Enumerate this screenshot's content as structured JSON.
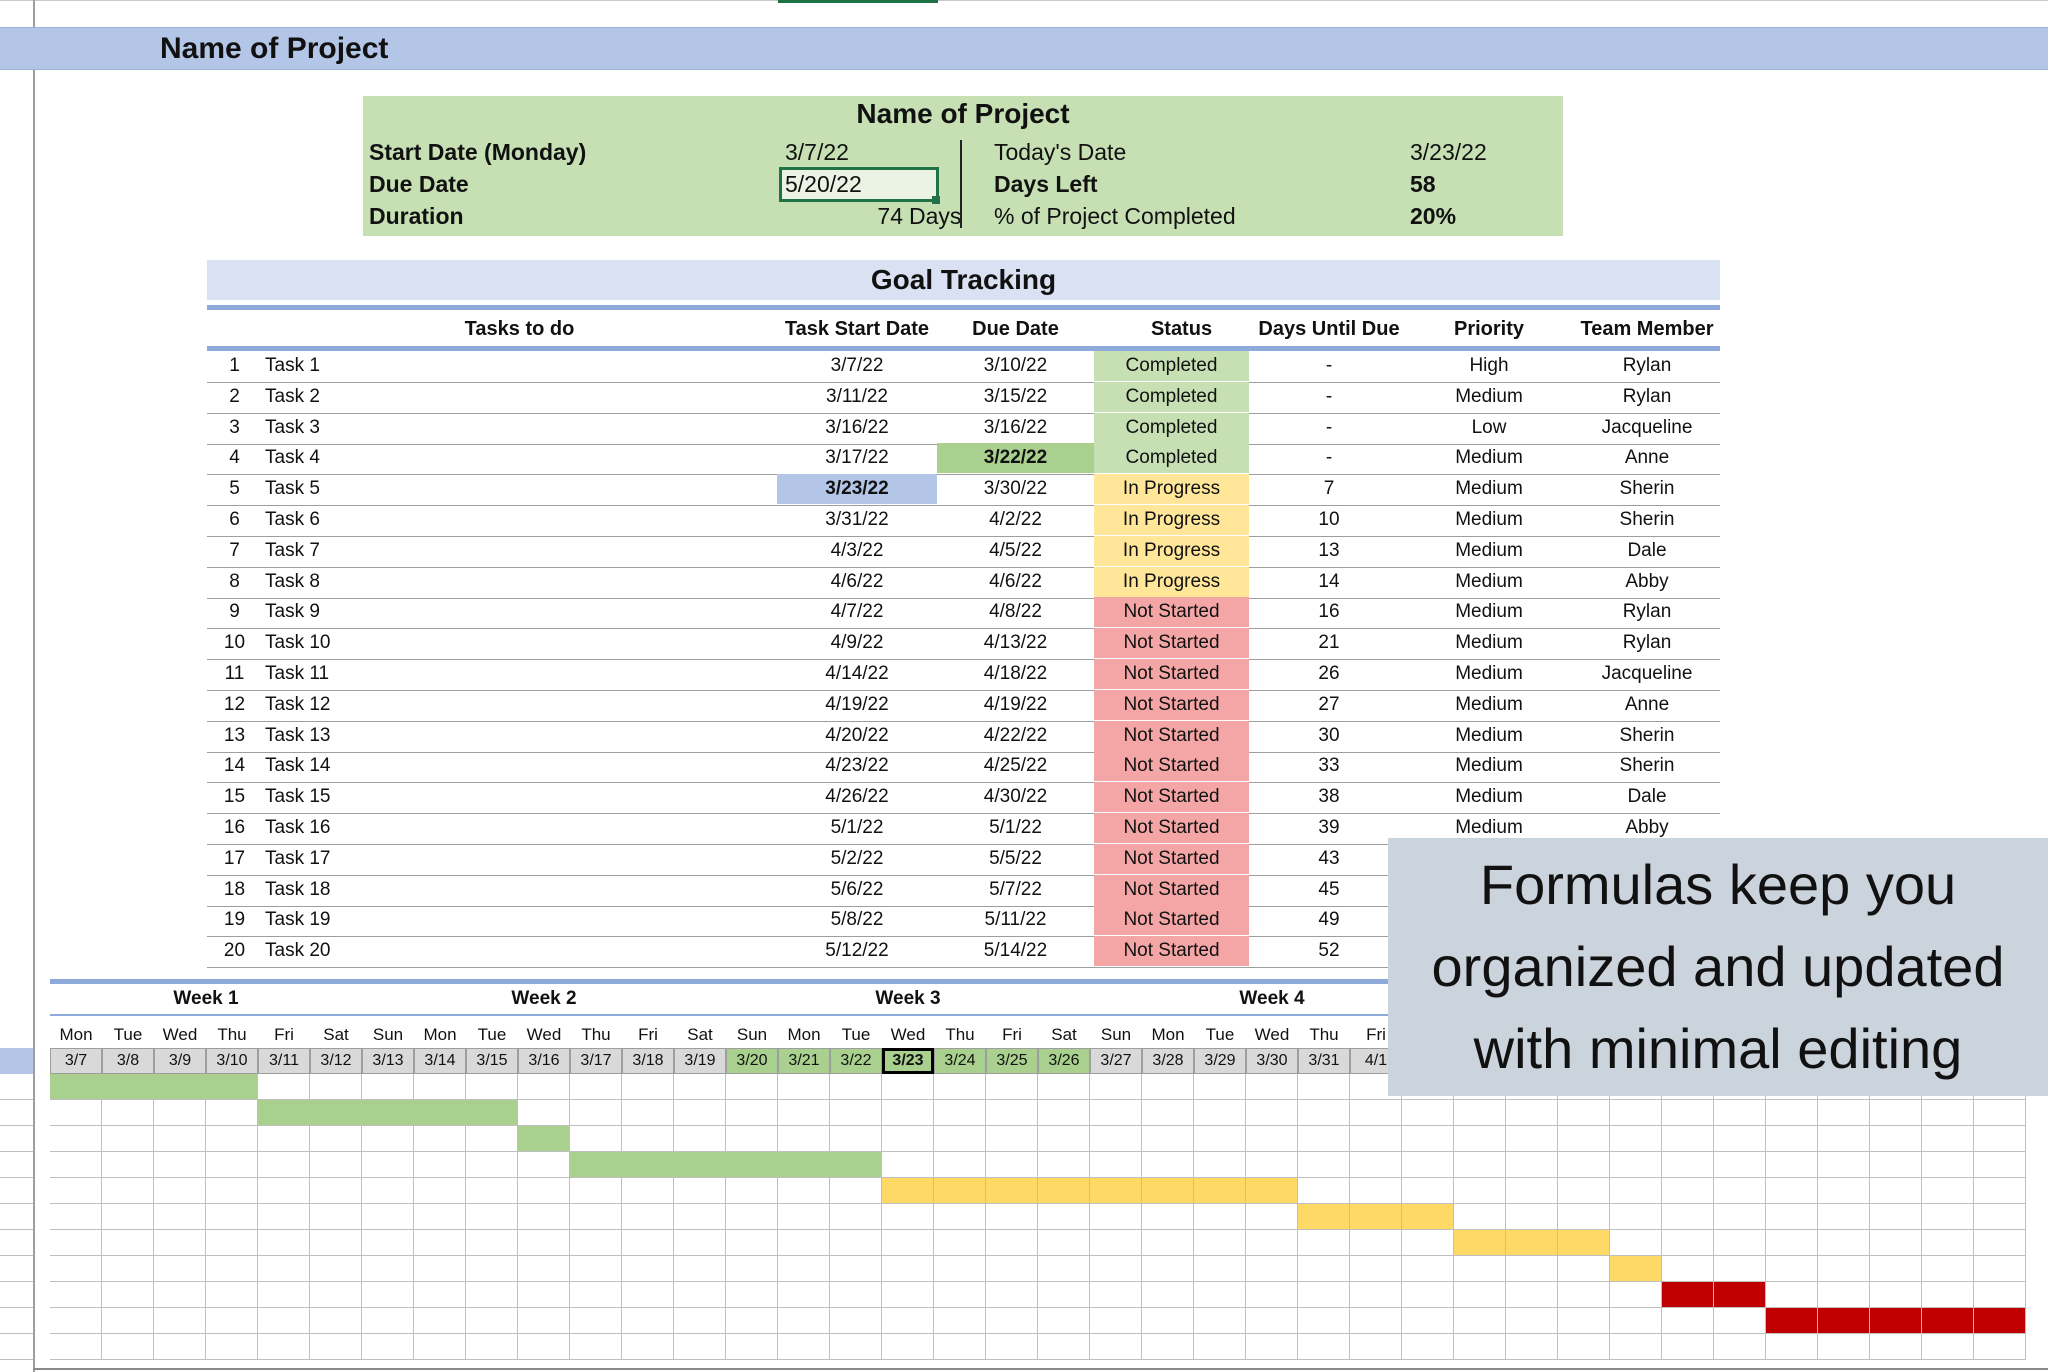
{
  "sheet": {
    "title_band": "Name of Project"
  },
  "summary": {
    "title": "Name of Project",
    "start_label": "Start Date (Monday)",
    "start_value": "3/7/22",
    "due_label": "Due Date",
    "due_value": "5/20/22",
    "duration_label": "Duration",
    "duration_value": "74",
    "duration_unit": "Days",
    "today_label": "Today's Date",
    "today_value": "3/23/22",
    "days_left_label": "Days Left",
    "days_left_value": "58",
    "completed_label": "% of Project Completed",
    "completed_value": "20%"
  },
  "goal": {
    "title": "Goal Tracking",
    "headers": {
      "task": "Tasks to do",
      "start": "Task Start Date",
      "due": "Due Date",
      "status": "Status",
      "days": "Days Until Due",
      "priority": "Priority",
      "member": "Team Member"
    },
    "rows": [
      {
        "num": "1",
        "task": "Task 1",
        "start": "3/7/22",
        "due": "3/10/22",
        "status": "Completed",
        "days": "-",
        "priority": "High",
        "member": "Rylan"
      },
      {
        "num": "2",
        "task": "Task 2",
        "start": "3/11/22",
        "due": "3/15/22",
        "status": "Completed",
        "days": "-",
        "priority": "Medium",
        "member": "Rylan"
      },
      {
        "num": "3",
        "task": "Task 3",
        "start": "3/16/22",
        "due": "3/16/22",
        "status": "Completed",
        "days": "-",
        "priority": "Low",
        "member": "Jacqueline"
      },
      {
        "num": "4",
        "task": "Task 4",
        "start": "3/17/22",
        "due": "3/22/22",
        "status": "Completed",
        "days": "-",
        "priority": "Medium",
        "member": "Anne"
      },
      {
        "num": "5",
        "task": "Task 5",
        "start": "3/23/22",
        "due": "3/30/22",
        "status": "In Progress",
        "days": "7",
        "priority": "Medium",
        "member": "Sherin"
      },
      {
        "num": "6",
        "task": "Task 6",
        "start": "3/31/22",
        "due": "4/2/22",
        "status": "In Progress",
        "days": "10",
        "priority": "Medium",
        "member": "Sherin"
      },
      {
        "num": "7",
        "task": "Task 7",
        "start": "4/3/22",
        "due": "4/5/22",
        "status": "In Progress",
        "days": "13",
        "priority": "Medium",
        "member": "Dale"
      },
      {
        "num": "8",
        "task": "Task 8",
        "start": "4/6/22",
        "due": "4/6/22",
        "status": "In Progress",
        "days": "14",
        "priority": "Medium",
        "member": "Abby"
      },
      {
        "num": "9",
        "task": "Task 9",
        "start": "4/7/22",
        "due": "4/8/22",
        "status": "Not Started",
        "days": "16",
        "priority": "Medium",
        "member": "Rylan"
      },
      {
        "num": "10",
        "task": "Task 10",
        "start": "4/9/22",
        "due": "4/13/22",
        "status": "Not Started",
        "days": "21",
        "priority": "Medium",
        "member": "Rylan"
      },
      {
        "num": "11",
        "task": "Task 11",
        "start": "4/14/22",
        "due": "4/18/22",
        "status": "Not Started",
        "days": "26",
        "priority": "Medium",
        "member": "Jacqueline"
      },
      {
        "num": "12",
        "task": "Task 12",
        "start": "4/19/22",
        "due": "4/19/22",
        "status": "Not Started",
        "days": "27",
        "priority": "Medium",
        "member": "Anne"
      },
      {
        "num": "13",
        "task": "Task 13",
        "start": "4/20/22",
        "due": "4/22/22",
        "status": "Not Started",
        "days": "30",
        "priority": "Medium",
        "member": "Sherin"
      },
      {
        "num": "14",
        "task": "Task 14",
        "start": "4/23/22",
        "due": "4/25/22",
        "status": "Not Started",
        "days": "33",
        "priority": "Medium",
        "member": "Sherin"
      },
      {
        "num": "15",
        "task": "Task 15",
        "start": "4/26/22",
        "due": "4/30/22",
        "status": "Not Started",
        "days": "38",
        "priority": "Medium",
        "member": "Dale"
      },
      {
        "num": "16",
        "task": "Task 16",
        "start": "5/1/22",
        "due": "5/1/22",
        "status": "Not Started",
        "days": "39",
        "priority": "Medium",
        "member": "Abby"
      },
      {
        "num": "17",
        "task": "Task 17",
        "start": "5/2/22",
        "due": "5/5/22",
        "status": "Not Started",
        "days": "43",
        "priority": "",
        "member": ""
      },
      {
        "num": "18",
        "task": "Task 18",
        "start": "5/6/22",
        "due": "5/7/22",
        "status": "Not Started",
        "days": "45",
        "priority": "",
        "member": ""
      },
      {
        "num": "19",
        "task": "Task 19",
        "start": "5/8/22",
        "due": "5/11/22",
        "status": "Not Started",
        "days": "49",
        "priority": "",
        "member": ""
      },
      {
        "num": "20",
        "task": "Task 20",
        "start": "5/12/22",
        "due": "5/14/22",
        "status": "Not Started",
        "days": "52",
        "priority": "",
        "member": ""
      }
    ]
  },
  "timeline": {
    "weeks": [
      "Week 1",
      "Week 2",
      "Week 3",
      "Week 4"
    ],
    "days": [
      "Mon",
      "Tue",
      "Wed",
      "Thu",
      "Fri",
      "Sat",
      "Sun",
      "Mon",
      "Tue",
      "Wed",
      "Thu",
      "Fri",
      "Sat",
      "Sun",
      "Mon",
      "Tue",
      "Wed",
      "Thu",
      "Fri",
      "Sat",
      "Sun",
      "Mon",
      "Tue",
      "Wed",
      "Thu",
      "Fri"
    ],
    "dates": [
      "3/7",
      "3/8",
      "3/9",
      "3/10",
      "3/11",
      "3/12",
      "3/13",
      "3/14",
      "3/15",
      "3/16",
      "3/17",
      "3/18",
      "3/19",
      "3/20",
      "3/21",
      "3/22",
      "3/23",
      "3/24",
      "3/25",
      "3/26",
      "3/27",
      "3/28",
      "3/29",
      "3/30",
      "3/31",
      "4/1"
    ],
    "today": "3/23"
  },
  "colors": {
    "completed": "#c6e0b4",
    "in_progress": "#ffe699",
    "not_started": "#f4a6a6",
    "bar_completed": "#a9d08e",
    "bar_in_progress": "#ffd966",
    "bar_not_started": "#c00000",
    "highlight_today": "#b4c6e7",
    "highlight_due": "#a9d08e"
  },
  "callout": {
    "lines": [
      "Formulas keep you",
      "organized and updated",
      "with minimal editing"
    ]
  }
}
